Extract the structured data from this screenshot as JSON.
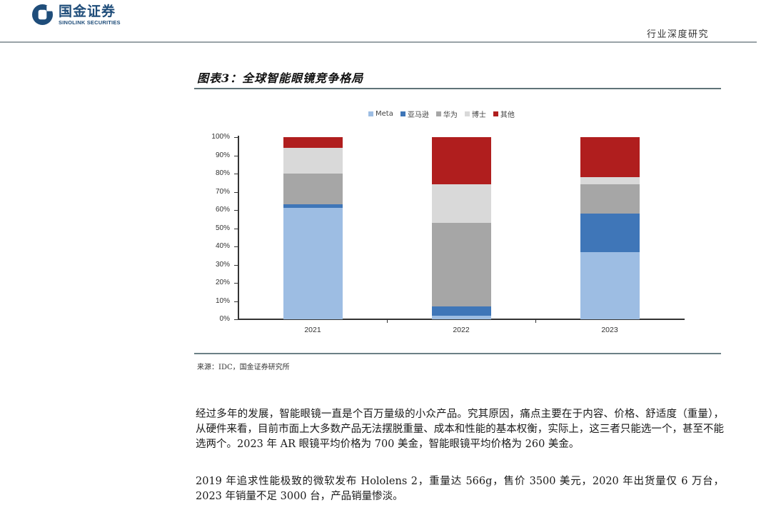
{
  "header": {
    "logo_cn": "国金证券",
    "logo_en": "SINOLINK SECURITIES",
    "report_type": "行业深度研究",
    "brand_color": "#1f4d7a"
  },
  "figure": {
    "title": "图表3：全球智能眼镜竞争格局",
    "source": "来源：IDC，国金证券研究所"
  },
  "chart_data": {
    "type": "bar",
    "stacked": true,
    "title": "全球智能眼镜竞争格局",
    "categories": [
      "2021",
      "2022",
      "2023"
    ],
    "series": [
      {
        "name": "Meta",
        "color": "#9dbde3",
        "values": [
          61,
          2,
          37
        ]
      },
      {
        "name": "亚马逊",
        "color": "#3f76b8",
        "values": [
          2,
          5,
          21
        ]
      },
      {
        "name": "华为",
        "color": "#a6a6a6",
        "values": [
          17,
          46,
          16
        ]
      },
      {
        "name": "博士",
        "color": "#d9d9d9",
        "values": [
          14,
          21,
          4
        ]
      },
      {
        "name": "其他",
        "color": "#b01e1e",
        "values": [
          6,
          26,
          22
        ]
      }
    ],
    "xlabel": "",
    "ylabel": "",
    "ylim": [
      0,
      100
    ],
    "yticks": [
      "0%",
      "10%",
      "20%",
      "30%",
      "40%",
      "50%",
      "60%",
      "70%",
      "80%",
      "90%",
      "100%"
    ],
    "grid": false,
    "legend_position": "top"
  },
  "body": {
    "paragraph1": "经过多年的发展，智能眼镜一直是个百万量级的小众产品。究其原因，痛点主要在于内容、价格、舒适度（重量），从硬件来看，目前市面上大多数产品无法摆脱重量、成本和性能的基本权衡，实际上，这三者只能选一个，甚至不能选两个。2023 年 AR 眼镜平均价格为 700 美金，智能眼镜平均价格为 260 美金。",
    "paragraph2": "2019 年追求性能极致的微软发布 Hololens 2，重量达 566g，售价 3500 美元，2020 年出货量仅 6 万台，2023 年销量不足 3000 台，产品销量惨淡。"
  }
}
